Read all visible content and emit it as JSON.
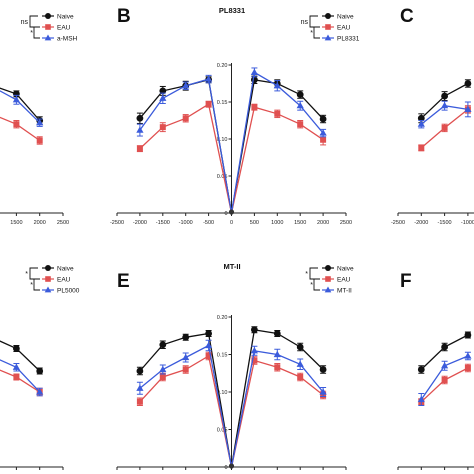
{
  "chart_data": [
    {
      "type": "line",
      "panel_label": "",
      "title": "",
      "legend": [
        "Naive",
        "EAU",
        "a-MSH"
      ],
      "significance": [
        {
          "text": "ns",
          "between": [
            "Naive",
            "EAU"
          ]
        },
        {
          "text": "*",
          "between": [
            "EAU",
            "a-MSH"
          ]
        }
      ],
      "x_ticks": [
        "1500",
        "2000",
        "2500"
      ],
      "y_ticks": [],
      "xlim": [
        -2500,
        2500
      ],
      "ylim": [
        0,
        0.2
      ],
      "series": [
        {
          "name": "Naive",
          "x": [
            500,
            1000,
            1500,
            2000
          ],
          "y": [
            0.18,
            0.172,
            0.161,
            0.125
          ],
          "err": [
            0.004,
            0.004,
            0.004,
            0.005
          ]
        },
        {
          "name": "EAU",
          "x": [
            500,
            1000,
            1500,
            2000
          ],
          "y": [
            0.14,
            0.133,
            0.12,
            0.098
          ],
          "err": [
            0.004,
            0.004,
            0.005,
            0.005
          ]
        },
        {
          "name": "a-MSH",
          "x": [
            500,
            1000,
            1500,
            2000
          ],
          "y": [
            0.183,
            0.17,
            0.153,
            0.122
          ],
          "err": [
            0.005,
            0.006,
            0.006,
            0.005
          ]
        }
      ]
    },
    {
      "type": "line",
      "panel_label": "B",
      "title": "PL8331",
      "legend": [
        "Naive",
        "EAU",
        "PL8331"
      ],
      "significance": [
        {
          "text": "ns",
          "between": [
            "Naive",
            "EAU"
          ]
        },
        {
          "text": "*",
          "between": [
            "EAU",
            "PL8331"
          ]
        }
      ],
      "x_ticks": [
        "-2500",
        "-2000",
        "-1500",
        "-1000",
        "-500",
        "0",
        "500",
        "1000",
        "1500",
        "2000",
        "2500"
      ],
      "y_ticks": [
        "0",
        "0.05",
        "0.10",
        "0.15",
        "0.20"
      ],
      "xlim": [
        -2500,
        2500
      ],
      "ylim": [
        0,
        0.2
      ],
      "series": [
        {
          "name": "Naive",
          "x": [
            -2000,
            -1500,
            -1000,
            -500,
            0,
            500,
            1000,
            1500,
            2000
          ],
          "y": [
            0.128,
            0.165,
            0.172,
            0.18,
            0.0,
            0.18,
            0.175,
            0.16,
            0.127
          ],
          "err": [
            0.007,
            0.006,
            0.006,
            0.004,
            0.0,
            0.005,
            0.005,
            0.005,
            0.005
          ]
        },
        {
          "name": "EAU",
          "x": [
            -2000,
            -1500,
            -1000,
            -500,
            0,
            500,
            1000,
            1500,
            2000
          ],
          "y": [
            0.087,
            0.116,
            0.128,
            0.147,
            0.0,
            0.143,
            0.134,
            0.12,
            0.099
          ],
          "err": [
            0.004,
            0.006,
            0.005,
            0.004,
            0.0,
            0.004,
            0.005,
            0.005,
            0.007
          ]
        },
        {
          "name": "PL8331",
          "x": [
            -2000,
            -1500,
            -1000,
            -500,
            0,
            500,
            1000,
            1500,
            2000
          ],
          "y": [
            0.112,
            0.155,
            0.172,
            0.181,
            0.0,
            0.19,
            0.172,
            0.145,
            0.108
          ],
          "err": [
            0.008,
            0.007,
            0.005,
            0.005,
            0.0,
            0.006,
            0.007,
            0.006,
            0.005
          ]
        }
      ]
    },
    {
      "type": "line",
      "panel_label": "C",
      "title": "",
      "legend": [],
      "significance": [],
      "x_ticks": [
        "-2500",
        "-2000",
        "-1500",
        "-1000"
      ],
      "y_ticks": [],
      "xlim": [
        -2500,
        2500
      ],
      "ylim": [
        0,
        0.2
      ],
      "series": [
        {
          "name": "",
          "x": [
            -2000,
            -1500,
            -1000
          ],
          "y": [
            0.128,
            0.158,
            0.175
          ],
          "err": [
            0.006,
            0.006,
            0.005
          ]
        },
        {
          "name": "",
          "x": [
            -2000,
            -1500,
            -1000
          ],
          "y": [
            0.088,
            0.115,
            0.14
          ],
          "err": [
            0.004,
            0.005,
            0.005
          ]
        },
        {
          "name": "",
          "x": [
            -2000,
            -1500,
            -1000
          ],
          "y": [
            0.12,
            0.145,
            0.14
          ],
          "err": [
            0.005,
            0.006,
            0.01
          ]
        }
      ]
    },
    {
      "type": "line",
      "panel_label": "",
      "title": "",
      "legend": [
        "Naive",
        "EAU",
        "PL5000"
      ],
      "significance": [
        {
          "text": "*",
          "between": [
            "Naive",
            "EAU"
          ]
        },
        {
          "text": "*",
          "between": [
            "EAU",
            "PL5000"
          ]
        }
      ],
      "x_ticks": [
        "1500",
        "2000",
        "2500"
      ],
      "y_ticks": [],
      "xlim": [
        -2500,
        2500
      ],
      "ylim": [
        0,
        0.2
      ],
      "series": [
        {
          "name": "Naive",
          "x": [
            500,
            1000,
            1500,
            2000
          ],
          "y": [
            0.182,
            0.172,
            0.158,
            0.128
          ],
          "err": [
            0.004,
            0.004,
            0.004,
            0.004
          ]
        },
        {
          "name": "EAU",
          "x": [
            500,
            1000,
            1500,
            2000
          ],
          "y": [
            0.143,
            0.133,
            0.12,
            0.1
          ],
          "err": [
            0.004,
            0.004,
            0.004,
            0.005
          ]
        },
        {
          "name": "PL5000",
          "x": [
            500,
            1000,
            1500,
            2000
          ],
          "y": [
            0.158,
            0.147,
            0.133,
            0.1
          ],
          "err": [
            0.005,
            0.005,
            0.005,
            0.005
          ]
        }
      ]
    },
    {
      "type": "line",
      "panel_label": "E",
      "title": "MT-II",
      "legend": [
        "Naive",
        "EAU",
        "MT-II"
      ],
      "significance": [
        {
          "text": "*",
          "between": [
            "Naive",
            "EAU"
          ]
        },
        {
          "text": "*",
          "between": [
            "EAU",
            "MT-II"
          ]
        }
      ],
      "x_ticks": [
        "-2500",
        "-2000",
        "-1500",
        "-1000",
        "-500",
        "0",
        "500",
        "1000",
        "1500",
        "2000",
        "2500"
      ],
      "y_ticks": [
        "0",
        "0.05",
        "0.10",
        "0.15",
        "0.20"
      ],
      "xlim": [
        -2500,
        2500
      ],
      "ylim": [
        0,
        0.2
      ],
      "series": [
        {
          "name": "Naive",
          "x": [
            -2000,
            -1500,
            -1000,
            -500,
            0,
            500,
            1000,
            1500,
            2000
          ],
          "y": [
            0.128,
            0.163,
            0.173,
            0.178,
            0.0,
            0.183,
            0.178,
            0.16,
            0.13
          ],
          "err": [
            0.005,
            0.005,
            0.004,
            0.004,
            0.0,
            0.004,
            0.004,
            0.005,
            0.005
          ]
        },
        {
          "name": "EAU",
          "x": [
            -2000,
            -1500,
            -1000,
            -500,
            0,
            500,
            1000,
            1500,
            2000
          ],
          "y": [
            0.087,
            0.12,
            0.13,
            0.148,
            0.0,
            0.142,
            0.133,
            0.12,
            0.096
          ],
          "err": [
            0.005,
            0.005,
            0.005,
            0.005,
            0.0,
            0.005,
            0.005,
            0.005,
            0.005
          ]
        },
        {
          "name": "MT-II",
          "x": [
            -2000,
            -1500,
            -1000,
            -500,
            0,
            500,
            1000,
            1500,
            2000
          ],
          "y": [
            0.105,
            0.13,
            0.146,
            0.162,
            0.0,
            0.155,
            0.15,
            0.137,
            0.1
          ],
          "err": [
            0.008,
            0.006,
            0.006,
            0.007,
            0.0,
            0.006,
            0.007,
            0.007,
            0.006
          ]
        }
      ]
    },
    {
      "type": "line",
      "panel_label": "F",
      "title": "",
      "legend": [],
      "significance": [],
      "x_ticks": [
        "-2500",
        "-2000",
        "-1500",
        "-1000"
      ],
      "y_ticks": [],
      "xlim": [
        -2500,
        2500
      ],
      "ylim": [
        0,
        0.2
      ],
      "series": [
        {
          "name": "",
          "x": [
            -2000,
            -1500,
            -1000
          ],
          "y": [
            0.13,
            0.16,
            0.176
          ],
          "err": [
            0.005,
            0.005,
            0.004
          ]
        },
        {
          "name": "",
          "x": [
            -2000,
            -1500,
            -1000
          ],
          "y": [
            0.087,
            0.116,
            0.132
          ],
          "err": [
            0.004,
            0.005,
            0.005
          ]
        },
        {
          "name": "",
          "x": [
            -2000,
            -1500,
            -1000
          ],
          "y": [
            0.09,
            0.135,
            0.148
          ],
          "err": [
            0.008,
            0.006,
            0.005
          ]
        }
      ]
    }
  ],
  "colors": {
    "naive": "#111111",
    "eau": "#e05050",
    "treatment": "#3b5bdb",
    "axis": "#222222"
  },
  "icons": {
    "naive_marker": "filled-circle",
    "eau_marker": "filled-square",
    "treatment_marker": "filled-triangle"
  }
}
